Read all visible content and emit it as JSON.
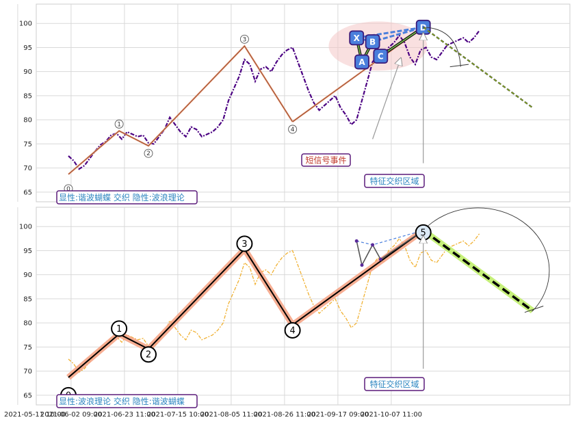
{
  "chart_data": [
    {
      "type": "line",
      "panel": "top",
      "ylim": [
        63,
        104
      ],
      "yticks": [
        65,
        70,
        75,
        80,
        85,
        90,
        95,
        100
      ],
      "grid": true,
      "price_series_color": "#4b0082",
      "price": [
        72.5,
        71.5,
        69.8,
        70.5,
        72.0,
        73.5,
        74.8,
        75.5,
        76.8,
        77.2,
        76.0,
        77.5,
        77.0,
        76.5,
        76.8,
        75.2,
        75.0,
        76.5,
        78.0,
        80.5,
        79.0,
        77.5,
        76.5,
        78.5,
        78.0,
        76.5,
        77.0,
        77.5,
        78.5,
        80.0,
        84.0,
        86.5,
        89.0,
        92.5,
        91.5,
        88.0,
        90.5,
        91.0,
        90.0,
        92.0,
        93.5,
        94.5,
        95.0,
        92.0,
        89.0,
        86.0,
        83.5,
        82.0,
        83.0,
        84.0,
        85.0,
        82.5,
        81.0,
        79.0,
        80.0,
        84.0,
        88.0,
        92.0,
        93.5,
        92.5,
        95.0,
        96.0,
        97.5,
        96.0,
        93.0,
        91.5,
        94.5,
        95.0,
        93.0,
        92.5,
        94.0,
        95.5,
        96.0,
        96.5,
        97.0,
        96.0,
        97.0,
        98.5
      ],
      "waves": {
        "labels": [
          "0",
          "1",
          "2",
          "3",
          "4"
        ],
        "points": [
          [
            0,
            68.7
          ],
          [
            9.5,
            77.7
          ],
          [
            15,
            74.6
          ],
          [
            33,
            95.3
          ],
          [
            42,
            79.6
          ]
        ]
      },
      "harmonic_butterfly": {
        "labels": [
          "X",
          "A",
          "B",
          "C",
          "D"
        ],
        "points": [
          [
            54,
            97.0
          ],
          [
            55,
            92.0
          ],
          [
            57,
            96.2
          ],
          [
            58.5,
            93.2
          ],
          [
            66.5,
            99.2
          ]
        ]
      },
      "forecast": {
        "points": [
          [
            66.5,
            99.2
          ],
          [
            87,
            82.5
          ]
        ],
        "color": "#a6d71c"
      },
      "annotations": {
        "short_signal": "短信号事件",
        "feature_zone": "特征交织区域",
        "legend": "显性:谐波蝴蝶 交织 隐性:波浪理论"
      }
    },
    {
      "type": "line",
      "panel": "bottom",
      "ylim": [
        63,
        104
      ],
      "yticks": [
        65,
        70,
        75,
        80,
        85,
        90,
        95,
        100
      ],
      "grid": true,
      "price_series_color": "#f0b030",
      "waves": {
        "labels": [
          "0",
          "1",
          "2",
          "3",
          "4",
          "5"
        ],
        "points": [
          [
            0,
            68.7
          ],
          [
            9.5,
            77.7
          ],
          [
            15,
            74.6
          ],
          [
            33,
            95.3
          ],
          [
            42,
            79.6
          ],
          [
            66.5,
            99.2
          ]
        ]
      },
      "harmonic_butterfly": {
        "points": [
          [
            54,
            97.0
          ],
          [
            55,
            92.0
          ],
          [
            57,
            96.2
          ],
          [
            58.5,
            93.2
          ],
          [
            66.5,
            99.2
          ]
        ]
      },
      "forecast": {
        "points": [
          [
            66.5,
            99.2
          ],
          [
            87,
            82.5
          ]
        ],
        "color": "#c6f07a"
      },
      "annotations": {
        "feature_zone": "特征交织区域",
        "legend": "显性:波浪理论 交织 隐性:谐波蝴蝶"
      }
    }
  ],
  "x_axis": {
    "tick_labels": [
      "2021-05-11 10:00",
      "2021-06-02 09:00",
      "2021-06-23 11:00",
      "2021-07-15 10:00",
      "2021-08-05 11:00",
      "2021-08-26 11:00",
      "2021-09-17 09:00",
      "2021-10-07 11:00"
    ],
    "tick_index": [
      -9.5,
      0.5,
      10.5,
      20.5,
      30.5,
      40.5,
      50.5,
      60.5
    ]
  }
}
